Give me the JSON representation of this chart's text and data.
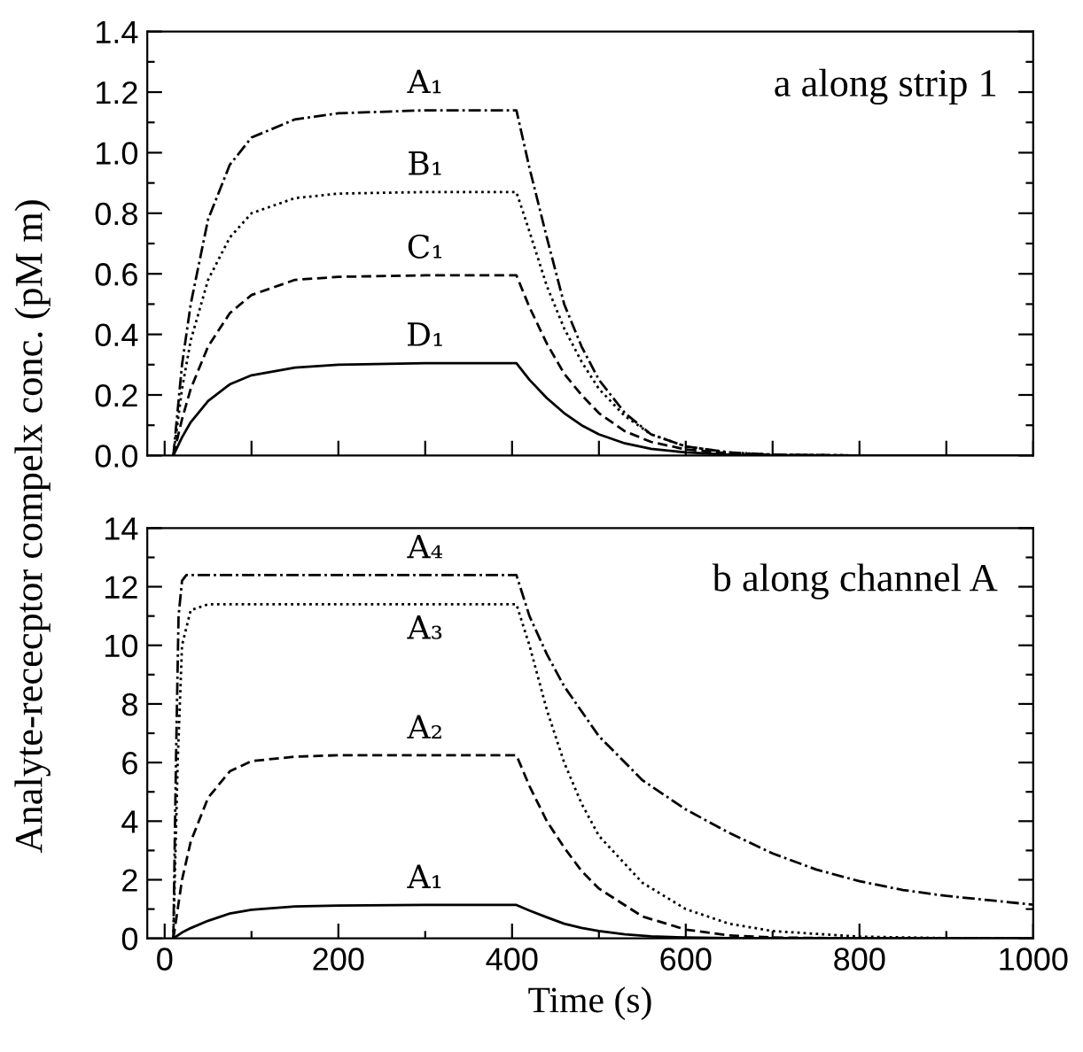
{
  "chart_data": [
    {
      "type": "line",
      "tick_labels": "y",
      "xlim": [
        -20,
        1000
      ],
      "xticks": [
        {
          "value": 0,
          "label": null
        },
        {
          "value": 100,
          "label": null
        },
        {
          "value": 200,
          "label": null
        },
        {
          "value": 300,
          "label": null
        },
        {
          "value": 400,
          "label": null
        },
        {
          "value": 500,
          "label": null
        },
        {
          "value": 600,
          "label": null
        },
        {
          "value": 700,
          "label": null
        },
        {
          "value": 800,
          "label": null
        },
        {
          "value": 900,
          "label": null
        },
        {
          "value": 1000,
          "label": null
        }
      ],
      "ylim": [
        0,
        1.4
      ],
      "yticks": [
        {
          "value": 0,
          "label": "0.0"
        },
        {
          "value": 0.1,
          "label": null
        },
        {
          "value": 0.2,
          "label": "0.2"
        },
        {
          "value": 0.3,
          "label": null
        },
        {
          "value": 0.4,
          "label": "0.4"
        },
        {
          "value": 0.5,
          "label": null
        },
        {
          "value": 0.6,
          "label": "0.6"
        },
        {
          "value": 0.7,
          "label": null
        },
        {
          "value": 0.8,
          "label": "0.8"
        },
        {
          "value": 0.9,
          "label": null
        },
        {
          "value": 1.0,
          "label": "1.0"
        },
        {
          "value": 1.1,
          "label": null
        },
        {
          "value": 1.2,
          "label": "1.2"
        },
        {
          "value": 1.3,
          "label": null
        },
        {
          "value": 1.4,
          "label": "1.4"
        }
      ],
      "grid": false,
      "legend": false,
      "marker": "none",
      "x": [
        10,
        20,
        30,
        50,
        75,
        100,
        150,
        200,
        300,
        405,
        420,
        440,
        460,
        480,
        500,
        530,
        560,
        600,
        650,
        700,
        800,
        1000
      ],
      "series": [
        {
          "name": "A₁",
          "color": "#000000",
          "line_style": "dashdot",
          "values": [
            0,
            0.3,
            0.5,
            0.78,
            0.96,
            1.05,
            1.11,
            1.13,
            1.14,
            1.14,
            0.95,
            0.72,
            0.5,
            0.36,
            0.25,
            0.14,
            0.07,
            0.03,
            0.01,
            0.003,
            0,
            0
          ]
        },
        {
          "name": "B₁",
          "color": "#000000",
          "line_style": "dotted",
          "values": [
            0,
            0.22,
            0.38,
            0.58,
            0.72,
            0.8,
            0.85,
            0.865,
            0.87,
            0.87,
            0.74,
            0.56,
            0.42,
            0.31,
            0.22,
            0.13,
            0.07,
            0.03,
            0.01,
            0.003,
            0,
            0
          ]
        },
        {
          "name": "C₁",
          "color": "#000000",
          "line_style": "dashed",
          "values": [
            0,
            0.12,
            0.22,
            0.36,
            0.47,
            0.53,
            0.58,
            0.59,
            0.595,
            0.595,
            0.49,
            0.37,
            0.27,
            0.2,
            0.14,
            0.08,
            0.045,
            0.02,
            0.007,
            0.002,
            0,
            0
          ]
        },
        {
          "name": "D₁",
          "color": "#000000",
          "line_style": "solid",
          "values": [
            0,
            0.06,
            0.11,
            0.18,
            0.235,
            0.265,
            0.29,
            0.3,
            0.305,
            0.305,
            0.25,
            0.19,
            0.14,
            0.1,
            0.07,
            0.04,
            0.022,
            0.01,
            0.003,
            0.001,
            0,
            0
          ]
        }
      ],
      "annotations": [
        "a along strip 1"
      ]
    },
    {
      "type": "line",
      "xlabel": "Time (s)",
      "ylabel": "Analyte-rececptor compelx conc. (pM m)",
      "xlim": [
        -20,
        1000
      ],
      "xticks": [
        0,
        {
          "value": 100,
          "label": null
        },
        200,
        {
          "value": 300,
          "label": null
        },
        400,
        {
          "value": 500,
          "label": null
        },
        600,
        {
          "value": 700,
          "label": null
        },
        800,
        {
          "value": 900,
          "label": null
        },
        1000
      ],
      "ylim": [
        0,
        14
      ],
      "yticks": [
        0,
        {
          "value": 1,
          "label": null
        },
        2,
        {
          "value": 3,
          "label": null
        },
        4,
        {
          "value": 5,
          "label": null
        },
        6,
        {
          "value": 7,
          "label": null
        },
        8,
        {
          "value": 9,
          "label": null
        },
        10,
        {
          "value": 11,
          "label": null
        },
        12,
        {
          "value": 13,
          "label": null
        },
        14
      ],
      "grid": false,
      "legend": false,
      "marker": "none",
      "series": [
        {
          "name": "A₄",
          "color": "#000000",
          "line_style": "dashdot",
          "x": [
            10,
            13,
            16,
            20,
            25,
            405,
            420,
            440,
            460,
            500,
            550,
            600,
            650,
            700,
            750,
            800,
            850,
            900,
            950,
            1000
          ],
          "values": [
            0,
            6,
            11,
            12.2,
            12.4,
            12.4,
            11,
            9.7,
            8.6,
            6.9,
            5.4,
            4.4,
            3.6,
            2.9,
            2.35,
            1.95,
            1.65,
            1.45,
            1.3,
            1.15
          ]
        },
        {
          "name": "A₃",
          "color": "#000000",
          "line_style": "dotted",
          "x": [
            10,
            15,
            20,
            30,
            50,
            405,
            420,
            440,
            460,
            480,
            500,
            550,
            600,
            650,
            700,
            800,
            900,
            1000
          ],
          "values": [
            0,
            6,
            10,
            11.2,
            11.4,
            11.4,
            10,
            7.8,
            6,
            4.6,
            3.5,
            1.9,
            1.0,
            0.5,
            0.25,
            0.06,
            0.01,
            0
          ]
        },
        {
          "name": "A₂",
          "color": "#000000",
          "line_style": "dashed",
          "x": [
            10,
            20,
            30,
            50,
            75,
            100,
            150,
            200,
            405,
            420,
            440,
            460,
            480,
            500,
            550,
            600,
            650,
            700,
            800,
            1000
          ],
          "values": [
            0,
            2,
            3.3,
            4.8,
            5.7,
            6.05,
            6.2,
            6.25,
            6.25,
            5.2,
            4,
            3.1,
            2.3,
            1.7,
            0.75,
            0.3,
            0.1,
            0.03,
            0,
            0
          ]
        },
        {
          "name": "A₁",
          "color": "#000000",
          "line_style": "solid",
          "x": [
            10,
            20,
            30,
            50,
            75,
            100,
            150,
            200,
            300,
            405,
            420,
            440,
            460,
            480,
            500,
            530,
            560,
            600,
            650,
            800,
            1000
          ],
          "values": [
            0,
            0.2,
            0.35,
            0.6,
            0.85,
            0.98,
            1.09,
            1.12,
            1.14,
            1.14,
            0.95,
            0.72,
            0.5,
            0.36,
            0.25,
            0.14,
            0.07,
            0.03,
            0.01,
            0,
            0
          ]
        }
      ],
      "annotations": [
        "b along channel A"
      ]
    }
  ]
}
